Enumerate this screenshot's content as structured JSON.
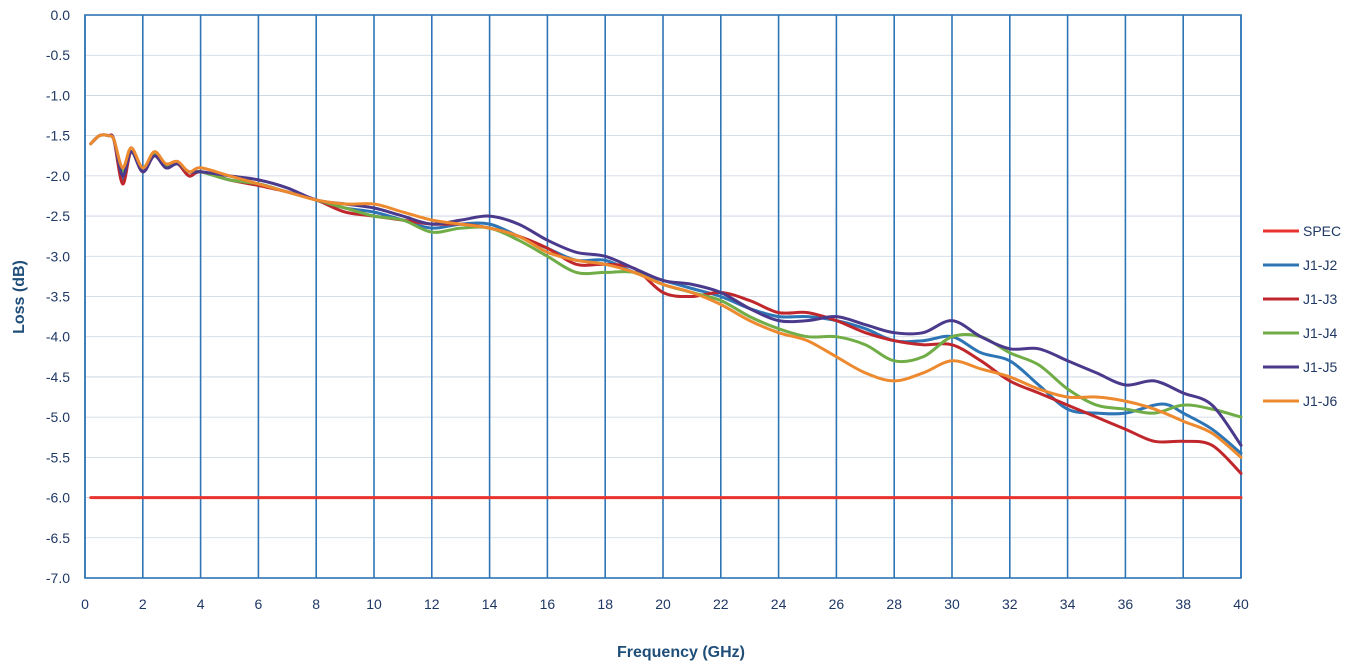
{
  "chart_data": {
    "type": "line",
    "title": "",
    "xlabel": "Frequency (GHz)",
    "ylabel": "Loss (dB)",
    "xlim": [
      0,
      40
    ],
    "ylim": [
      -7.0,
      0.0
    ],
    "x_ticks": [
      "0",
      "2",
      "4",
      "6",
      "8",
      "10",
      "12",
      "14",
      "16",
      "18",
      "20",
      "22",
      "24",
      "26",
      "28",
      "30",
      "32",
      "34",
      "36",
      "38",
      "40"
    ],
    "y_ticks": [
      "0.0",
      "-0.5",
      "-1.0",
      "-1.5",
      "-2.0",
      "-2.5",
      "-3.0",
      "-3.5",
      "-4.0",
      "-4.5",
      "-5.0",
      "-5.5",
      "-6.0",
      "-6.5",
      "-7.0"
    ],
    "grid": "vertical",
    "legend_position": "right",
    "series": [
      {
        "name": "SPEC",
        "color": "#e8332f",
        "x": [
          0.2,
          40
        ],
        "values": [
          -6.0,
          -6.0
        ]
      },
      {
        "name": "J1-J2",
        "color": "#2e75b6",
        "x": [
          0.2,
          0.5,
          0.8,
          1.0,
          1.3,
          1.6,
          2.0,
          2.4,
          2.8,
          3.2,
          3.6,
          4.0,
          5,
          6,
          7,
          8,
          9,
          10,
          11,
          12,
          13,
          14,
          15,
          16,
          17,
          18,
          19,
          20,
          21,
          22,
          23,
          24,
          25,
          26,
          27,
          28,
          29,
          30,
          31,
          32,
          33,
          34,
          35,
          36,
          37,
          37.5,
          38,
          39,
          40
        ],
        "values": [
          -1.6,
          -1.5,
          -1.5,
          -1.55,
          -2.05,
          -1.7,
          -1.95,
          -1.75,
          -1.9,
          -1.85,
          -2.0,
          -1.95,
          -2.05,
          -2.1,
          -2.2,
          -2.3,
          -2.4,
          -2.45,
          -2.55,
          -2.65,
          -2.6,
          -2.6,
          -2.75,
          -2.9,
          -3.05,
          -3.05,
          -3.2,
          -3.3,
          -3.4,
          -3.5,
          -3.65,
          -3.75,
          -3.75,
          -3.8,
          -3.9,
          -4.05,
          -4.05,
          -4.0,
          -4.2,
          -4.3,
          -4.6,
          -4.9,
          -4.95,
          -4.95,
          -4.85,
          -4.85,
          -4.95,
          -5.15,
          -5.45
        ]
      },
      {
        "name": "J1-J3",
        "color": "#c0272d",
        "x": [
          0.2,
          0.5,
          0.8,
          1.0,
          1.3,
          1.6,
          2.0,
          2.4,
          2.8,
          3.2,
          3.6,
          4.0,
          5,
          6,
          7,
          8,
          9,
          10,
          11,
          12,
          13,
          14,
          15,
          16,
          17,
          18,
          19,
          20,
          21,
          22,
          23,
          24,
          25,
          26,
          27,
          28,
          29,
          30,
          31,
          32,
          33,
          34,
          35,
          36,
          37,
          38,
          39,
          40
        ],
        "values": [
          -1.6,
          -1.5,
          -1.5,
          -1.55,
          -2.1,
          -1.7,
          -1.95,
          -1.75,
          -1.9,
          -1.85,
          -2.0,
          -1.95,
          -2.05,
          -2.12,
          -2.2,
          -2.3,
          -2.45,
          -2.5,
          -2.55,
          -2.6,
          -2.6,
          -2.65,
          -2.75,
          -2.9,
          -3.1,
          -3.1,
          -3.15,
          -3.45,
          -3.5,
          -3.45,
          -3.55,
          -3.7,
          -3.7,
          -3.8,
          -3.95,
          -4.05,
          -4.1,
          -4.1,
          -4.3,
          -4.55,
          -4.7,
          -4.85,
          -5.0,
          -5.15,
          -5.3,
          -5.3,
          -5.35,
          -5.7
        ]
      },
      {
        "name": "J1-J4",
        "color": "#70ad47",
        "x": [
          0.2,
          0.5,
          0.8,
          1.0,
          1.3,
          1.6,
          2.0,
          2.4,
          2.8,
          3.2,
          3.6,
          4.0,
          5,
          6,
          7,
          8,
          9,
          10,
          11,
          12,
          13,
          14,
          15,
          16,
          17,
          18,
          19,
          20,
          21,
          22,
          23,
          24,
          25,
          26,
          27,
          28,
          29,
          30,
          31,
          32,
          33,
          34,
          35,
          36,
          37,
          38,
          39,
          40
        ],
        "values": [
          -1.6,
          -1.5,
          -1.5,
          -1.55,
          -1.95,
          -1.7,
          -1.9,
          -1.72,
          -1.88,
          -1.85,
          -1.95,
          -1.95,
          -2.05,
          -2.1,
          -2.2,
          -2.3,
          -2.4,
          -2.5,
          -2.55,
          -2.7,
          -2.65,
          -2.65,
          -2.8,
          -3.0,
          -3.2,
          -3.2,
          -3.2,
          -3.35,
          -3.45,
          -3.55,
          -3.75,
          -3.9,
          -4.0,
          -4.0,
          -4.1,
          -4.3,
          -4.25,
          -4.0,
          -4.0,
          -4.2,
          -4.35,
          -4.65,
          -4.85,
          -4.9,
          -4.95,
          -4.85,
          -4.9,
          -5.0
        ]
      },
      {
        "name": "J1-J5",
        "color": "#4b3a8c",
        "x": [
          0.2,
          0.5,
          0.8,
          1.0,
          1.3,
          1.6,
          2.0,
          2.4,
          2.8,
          3.2,
          3.6,
          4.0,
          5,
          6,
          7,
          8,
          9,
          10,
          11,
          12,
          13,
          14,
          15,
          16,
          17,
          18,
          19,
          20,
          21,
          22,
          23,
          24,
          25,
          26,
          27,
          28,
          29,
          30,
          31,
          32,
          33,
          34,
          35,
          36,
          37,
          38,
          39,
          40
        ],
        "values": [
          -1.6,
          -1.5,
          -1.5,
          -1.55,
          -2.0,
          -1.7,
          -1.95,
          -1.75,
          -1.9,
          -1.85,
          -1.95,
          -1.95,
          -2.0,
          -2.05,
          -2.15,
          -2.3,
          -2.35,
          -2.4,
          -2.5,
          -2.6,
          -2.55,
          -2.5,
          -2.6,
          -2.8,
          -2.95,
          -3.0,
          -3.15,
          -3.3,
          -3.35,
          -3.45,
          -3.65,
          -3.8,
          -3.8,
          -3.75,
          -3.85,
          -3.95,
          -3.95,
          -3.8,
          -4.0,
          -4.15,
          -4.15,
          -4.3,
          -4.45,
          -4.6,
          -4.55,
          -4.7,
          -4.85,
          -5.35
        ]
      },
      {
        "name": "J1-J6",
        "color": "#ed8a2f",
        "x": [
          0.2,
          0.5,
          0.8,
          1.0,
          1.3,
          1.6,
          2.0,
          2.4,
          2.8,
          3.2,
          3.6,
          4.0,
          5,
          6,
          7,
          8,
          9,
          10,
          11,
          12,
          13,
          14,
          15,
          16,
          17,
          18,
          19,
          20,
          21,
          22,
          23,
          24,
          25,
          26,
          27,
          28,
          29,
          30,
          31,
          32,
          33,
          34,
          35,
          36,
          37,
          38,
          39,
          40
        ],
        "values": [
          -1.6,
          -1.5,
          -1.5,
          -1.55,
          -1.9,
          -1.65,
          -1.9,
          -1.7,
          -1.85,
          -1.82,
          -1.95,
          -1.9,
          -2.0,
          -2.1,
          -2.2,
          -2.3,
          -2.35,
          -2.35,
          -2.45,
          -2.55,
          -2.6,
          -2.65,
          -2.75,
          -2.95,
          -3.05,
          -3.1,
          -3.2,
          -3.35,
          -3.45,
          -3.6,
          -3.8,
          -3.95,
          -4.05,
          -4.25,
          -4.45,
          -4.55,
          -4.45,
          -4.3,
          -4.4,
          -4.5,
          -4.65,
          -4.75,
          -4.75,
          -4.8,
          -4.9,
          -5.05,
          -5.2,
          -5.5
        ]
      }
    ]
  }
}
